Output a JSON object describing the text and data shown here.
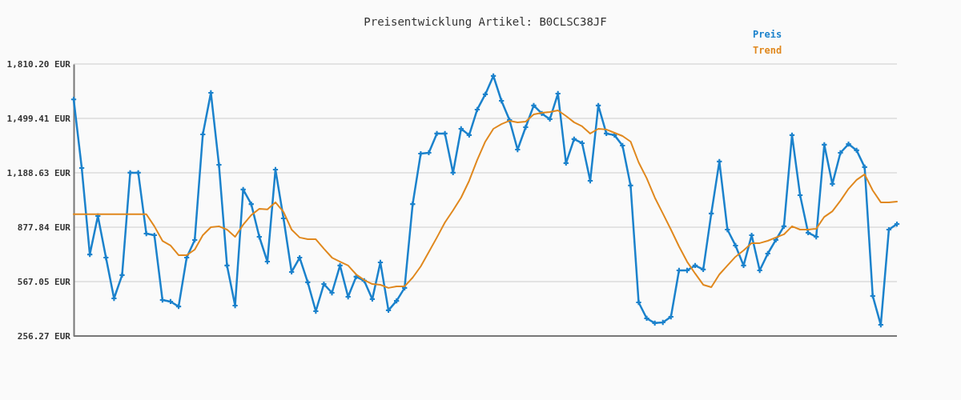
{
  "chart_data": {
    "type": "line",
    "title": "Preisentwicklung Artikel: B0CLSC38JF",
    "categories": [
      null,
      null,
      null,
      null,
      null,
      null,
      null,
      null,
      null,
      null,
      null,
      null,
      null,
      null,
      null,
      null,
      null,
      null,
      null,
      null,
      null,
      null,
      null,
      null,
      null,
      null,
      null,
      null,
      null,
      null,
      null,
      null,
      null,
      null,
      null,
      null,
      null,
      null,
      null,
      null,
      null,
      null,
      null,
      null,
      null,
      null,
      null,
      null,
      null,
      null,
      null,
      null,
      null,
      null,
      null,
      null,
      null,
      null,
      null,
      null,
      null,
      null,
      null,
      null,
      null,
      null,
      null,
      null,
      null,
      null,
      null,
      null,
      null,
      null,
      null,
      null,
      null,
      null,
      null,
      null,
      null,
      null,
      null,
      null,
      null,
      null,
      null,
      null,
      null,
      null,
      null,
      null,
      null,
      null,
      null,
      null,
      null,
      null,
      null,
      null,
      null,
      null,
      null
    ],
    "series": [
      {
        "name": "Preis",
        "color": "#1b82cc",
        "marker": "cross",
        "values": [
          1608,
          1216,
          722,
          942,
          704,
          471,
          604,
          1189,
          1189,
          841,
          832,
          462,
          453,
          425,
          704,
          805,
          1408,
          1646,
          1234,
          659,
          430,
          1093,
          1010,
          823,
          681,
          1207,
          928,
          622,
          704,
          563,
          398,
          553,
          503,
          659,
          480,
          595,
          572,
          467,
          677,
          403,
          457,
          531,
          1010,
          1298,
          1303,
          1413,
          1413,
          1189,
          1440,
          1404,
          1550,
          1637,
          1742,
          1600,
          1490,
          1321,
          1449,
          1573,
          1527,
          1495,
          1641,
          1244,
          1381,
          1358,
          1143,
          1573,
          1413,
          1404,
          1344,
          1116,
          448,
          357,
          330,
          334,
          366,
          631,
          631,
          659,
          636,
          956,
          1253,
          864,
          773,
          659,
          832,
          631,
          727,
          805,
          883,
          1404,
          1061,
          846,
          823,
          1349,
          1125,
          1303,
          1353,
          1317,
          1221,
          485,
          320,
          864,
          896
        ]
      },
      {
        "name": "Trend",
        "color": "#e0881e",
        "marker": "none",
        "values": [
          952,
          952,
          952,
          952,
          952,
          952,
          952,
          952,
          952,
          952,
          883,
          800,
          773,
          718,
          718,
          750,
          832,
          878,
          883,
          864,
          823,
          892,
          947,
          983,
          979,
          1020,
          965,
          864,
          819,
          809,
          809,
          755,
          704,
          681,
          659,
          608,
          576,
          553,
          549,
          531,
          540,
          540,
          590,
          654,
          736,
          819,
          905,
          974,
          1047,
          1143,
          1262,
          1367,
          1440,
          1467,
          1486,
          1477,
          1481,
          1522,
          1531,
          1536,
          1545,
          1513,
          1477,
          1454,
          1413,
          1440,
          1436,
          1417,
          1399,
          1367,
          1248,
          1157,
          1047,
          956,
          864,
          768,
          681,
          613,
          549,
          535,
          608,
          659,
          709,
          745,
          787,
          787,
          800,
          819,
          837,
          883,
          864,
          864,
          869,
          937,
          969,
          1029,
          1097,
          1148,
          1180,
          1088,
          1020,
          1020,
          1024
        ]
      }
    ],
    "ylim": [
      256.27,
      1810.2
    ],
    "yticks": [
      {
        "value": 256.27,
        "label": "256.27 EUR"
      },
      {
        "value": 567.05,
        "label": "567.05 EUR"
      },
      {
        "value": 877.84,
        "label": "877.84 EUR"
      },
      {
        "value": 1188.63,
        "label": "1,188.63 EUR"
      },
      {
        "value": 1499.41,
        "label": "1,499.41 EUR"
      },
      {
        "value": 1810.2,
        "label": "1,810.20 EUR"
      }
    ],
    "grid": "y",
    "legend": "top right",
    "tick_labels": "y",
    "line_style": "solid"
  }
}
